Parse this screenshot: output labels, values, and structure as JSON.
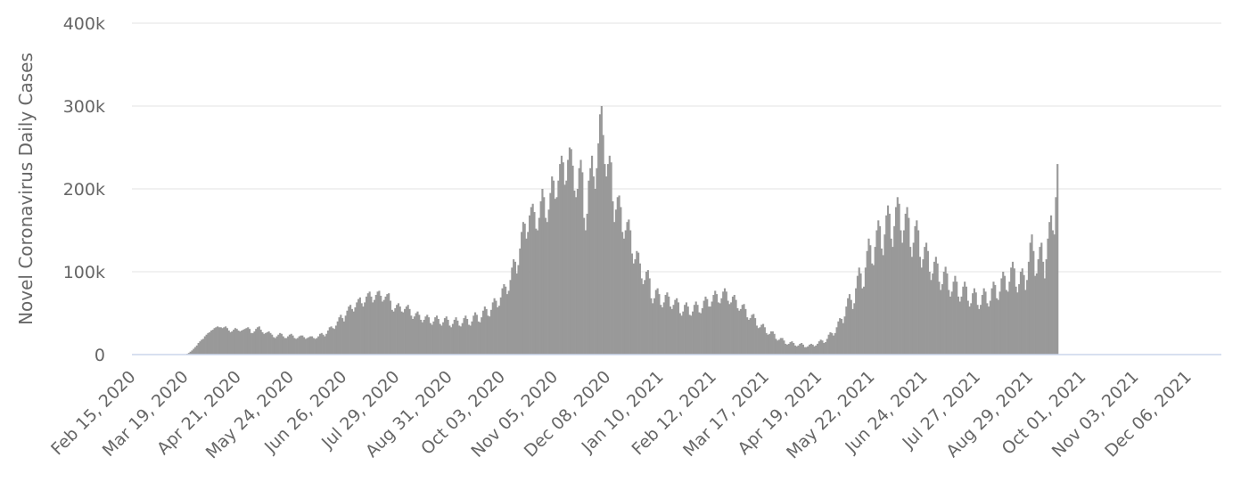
{
  "chart_data": {
    "type": "bar",
    "title": "",
    "xlabel": "",
    "ylabel": "Novel Coronavirus Daily Cases",
    "ylim": [
      0,
      400000
    ],
    "yticks": [
      {
        "value": 0,
        "label": "0"
      },
      {
        "value": 100000,
        "label": "100k"
      },
      {
        "value": 200000,
        "label": "200k"
      },
      {
        "value": 300000,
        "label": "300k"
      },
      {
        "value": 400000,
        "label": "400k"
      }
    ],
    "xlim": [
      "2020-02-15",
      "2021-12-27"
    ],
    "xticks": [
      {
        "date": "2020-02-15",
        "label": "Feb 15, 2020"
      },
      {
        "date": "2020-03-19",
        "label": "Mar 19, 2020"
      },
      {
        "date": "2020-04-21",
        "label": "Apr 21, 2020"
      },
      {
        "date": "2020-05-24",
        "label": "May 24, 2020"
      },
      {
        "date": "2020-06-26",
        "label": "Jun 26, 2020"
      },
      {
        "date": "2020-07-29",
        "label": "Jul 29, 2020"
      },
      {
        "date": "2020-08-31",
        "label": "Aug 31, 2020"
      },
      {
        "date": "2020-10-03",
        "label": "Oct 03, 2020"
      },
      {
        "date": "2020-11-05",
        "label": "Nov 05, 2020"
      },
      {
        "date": "2020-12-08",
        "label": "Dec 08, 2020"
      },
      {
        "date": "2021-01-10",
        "label": "Jan 10, 2021"
      },
      {
        "date": "2021-02-12",
        "label": "Feb 12, 2021"
      },
      {
        "date": "2021-03-17",
        "label": "Mar 17, 2021"
      },
      {
        "date": "2021-04-19",
        "label": "Apr 19, 2021"
      },
      {
        "date": "2021-05-22",
        "label": "May 22, 2021"
      },
      {
        "date": "2021-06-24",
        "label": "Jun 24, 2021"
      },
      {
        "date": "2021-07-27",
        "label": "Jul 27, 2021"
      },
      {
        "date": "2021-08-29",
        "label": "Aug 29, 2021"
      },
      {
        "date": "2021-10-01",
        "label": "Oct 01, 2021"
      },
      {
        "date": "2021-11-03",
        "label": "Nov 03, 2021"
      },
      {
        "date": "2021-12-06",
        "label": "Dec 06, 2021"
      }
    ],
    "grid": true,
    "bar_color": "#999999",
    "series": [
      {
        "start_date": "2020-02-15",
        "values": [
          0,
          0,
          0,
          0,
          0,
          0,
          0,
          0,
          0,
          0,
          0,
          0,
          0,
          0,
          0,
          0,
          0,
          0,
          0,
          0,
          0,
          0,
          0,
          0,
          0,
          0,
          0,
          0,
          0,
          0,
          0,
          0,
          0,
          0,
          1000,
          2000,
          3500,
          5000,
          7000,
          9000,
          11000,
          14000,
          16000,
          18000,
          19000,
          22000,
          24000,
          26000,
          27000,
          29000,
          30000,
          32000,
          33000,
          34000,
          33000,
          33000,
          32000,
          33000,
          34000,
          32000,
          29000,
          27000,
          28000,
          30000,
          32000,
          31000,
          29000,
          28000,
          29000,
          30000,
          31000,
          32000,
          33000,
          31000,
          26000,
          26000,
          28000,
          31000,
          33000,
          34000,
          30000,
          27000,
          25000,
          26000,
          27000,
          28000,
          26000,
          24000,
          21000,
          20000,
          22000,
          24000,
          26000,
          25000,
          22000,
          20000,
          20000,
          22000,
          24000,
          25000,
          23000,
          20000,
          19000,
          20000,
          22000,
          23000,
          23000,
          21000,
          19000,
          20000,
          21000,
          22000,
          22000,
          20000,
          19000,
          20000,
          22000,
          25000,
          26000,
          24000,
          22000,
          25000,
          29000,
          33000,
          34000,
          32000,
          31000,
          35000,
          40000,
          45000,
          48000,
          44000,
          40000,
          47000,
          53000,
          58000,
          60000,
          55000,
          52000,
          57000,
          63000,
          67000,
          69000,
          62000,
          58000,
          63000,
          70000,
          74000,
          76000,
          70000,
          63000,
          66000,
          72000,
          76000,
          77000,
          71000,
          64000,
          66000,
          70000,
          73000,
          74000,
          65000,
          54000,
          52000,
          56000,
          60000,
          62000,
          58000,
          52000,
          51000,
          55000,
          58000,
          60000,
          55000,
          47000,
          43000,
          46000,
          50000,
          52000,
          48000,
          42000,
          39000,
          42000,
          46000,
          48000,
          45000,
          38000,
          36000,
          40000,
          45000,
          47000,
          43000,
          37000,
          35000,
          39000,
          44000,
          46000,
          42000,
          35000,
          33000,
          37000,
          42000,
          45000,
          41000,
          35000,
          34000,
          38000,
          44000,
          47000,
          43000,
          36000,
          35000,
          40000,
          47000,
          51000,
          48000,
          40000,
          39000,
          45000,
          53000,
          58000,
          55000,
          47000,
          46000,
          54000,
          63000,
          68000,
          65000,
          57000,
          59000,
          69000,
          80000,
          85000,
          82000,
          73000,
          77000,
          90000,
          105000,
          115000,
          112000,
          98000,
          108000,
          128000,
          148000,
          160000,
          158000,
          140000,
          148000,
          168000,
          178000,
          182000,
          172000,
          152000,
          150000,
          165000,
          185000,
          200000,
          190000,
          165000,
          160000,
          175000,
          195000,
          215000,
          210000,
          188000,
          190000,
          210000,
          230000,
          240000,
          232000,
          205000,
          210000,
          235000,
          250000,
          248000,
          228000,
          198000,
          190000,
          200000,
          225000,
          235000,
          220000,
          165000,
          150000,
          170000,
          210000,
          225000,
          240000,
          215000,
          200000,
          225000,
          255000,
          290000,
          300000,
          265000,
          230000,
          215000,
          230000,
          240000,
          232000,
          185000,
          160000,
          175000,
          190000,
          192000,
          178000,
          148000,
          140000,
          150000,
          160000,
          163000,
          150000,
          122000,
          110000,
          115000,
          125000,
          123000,
          110000,
          92000,
          85000,
          90000,
          100000,
          102000,
          92000,
          68000,
          62000,
          68000,
          78000,
          80000,
          73000,
          60000,
          57000,
          63000,
          72000,
          75000,
          70000,
          58000,
          55000,
          60000,
          66000,
          68000,
          63000,
          50000,
          47000,
          52000,
          60000,
          63000,
          58000,
          48000,
          47000,
          52000,
          60000,
          64000,
          60000,
          51000,
          50000,
          56000,
          65000,
          70000,
          67000,
          58000,
          58000,
          64000,
          72000,
          77000,
          73000,
          63000,
          62000,
          68000,
          76000,
          80000,
          76000,
          65000,
          61000,
          63000,
          70000,
          72000,
          66000,
          56000,
          53000,
          55000,
          60000,
          61000,
          55000,
          45000,
          42000,
          44000,
          48000,
          49000,
          44000,
          35000,
          32000,
          33000,
          36000,
          37000,
          33000,
          26000,
          24000,
          25000,
          28000,
          28000,
          25000,
          19000,
          17000,
          18000,
          20000,
          20000,
          17000,
          13000,
          12000,
          13000,
          15000,
          16000,
          14000,
          11000,
          10000,
          11000,
          13000,
          14000,
          12000,
          9000,
          9000,
          10000,
          12000,
          13000,
          12000,
          10000,
          11000,
          13000,
          16000,
          18000,
          17000,
          14000,
          15000,
          19000,
          24000,
          27000,
          26000,
          23000,
          26000,
          33000,
          40000,
          44000,
          43000,
          38000,
          46000,
          58000,
          68000,
          73000,
          66000,
          55000,
          62000,
          80000,
          95000,
          105000,
          98000,
          80000,
          82000,
          105000,
          125000,
          140000,
          132000,
          110000,
          108000,
          130000,
          150000,
          162000,
          155000,
          128000,
          120000,
          145000,
          168000,
          180000,
          170000,
          140000,
          130000,
          155000,
          178000,
          190000,
          182000,
          150000,
          135000,
          150000,
          170000,
          178000,
          165000,
          130000,
          118000,
          135000,
          155000,
          162000,
          150000,
          118000,
          105000,
          115000,
          130000,
          135000,
          125000,
          100000,
          90000,
          98000,
          112000,
          118000,
          110000,
          88000,
          78000,
          85000,
          100000,
          106000,
          98000,
          78000,
          70000,
          76000,
          88000,
          95000,
          88000,
          70000,
          64000,
          70000,
          82000,
          88000,
          82000,
          65000,
          58000,
          62000,
          74000,
          80000,
          75000,
          60000,
          55000,
          60000,
          72000,
          80000,
          76000,
          62000,
          58000,
          65000,
          80000,
          88000,
          84000,
          68000,
          66000,
          76000,
          92000,
          100000,
          95000,
          78000,
          76000,
          88000,
          105000,
          112000,
          104000,
          82000,
          75000,
          85000,
          100000,
          104000,
          96000,
          78000,
          90000,
          112000,
          135000,
          145000,
          125000,
          95000,
          98000,
          115000,
          130000,
          135000,
          112000,
          92000,
          115000,
          140000,
          160000,
          168000,
          150000,
          145000,
          190000,
          230000
        ]
      }
    ]
  }
}
